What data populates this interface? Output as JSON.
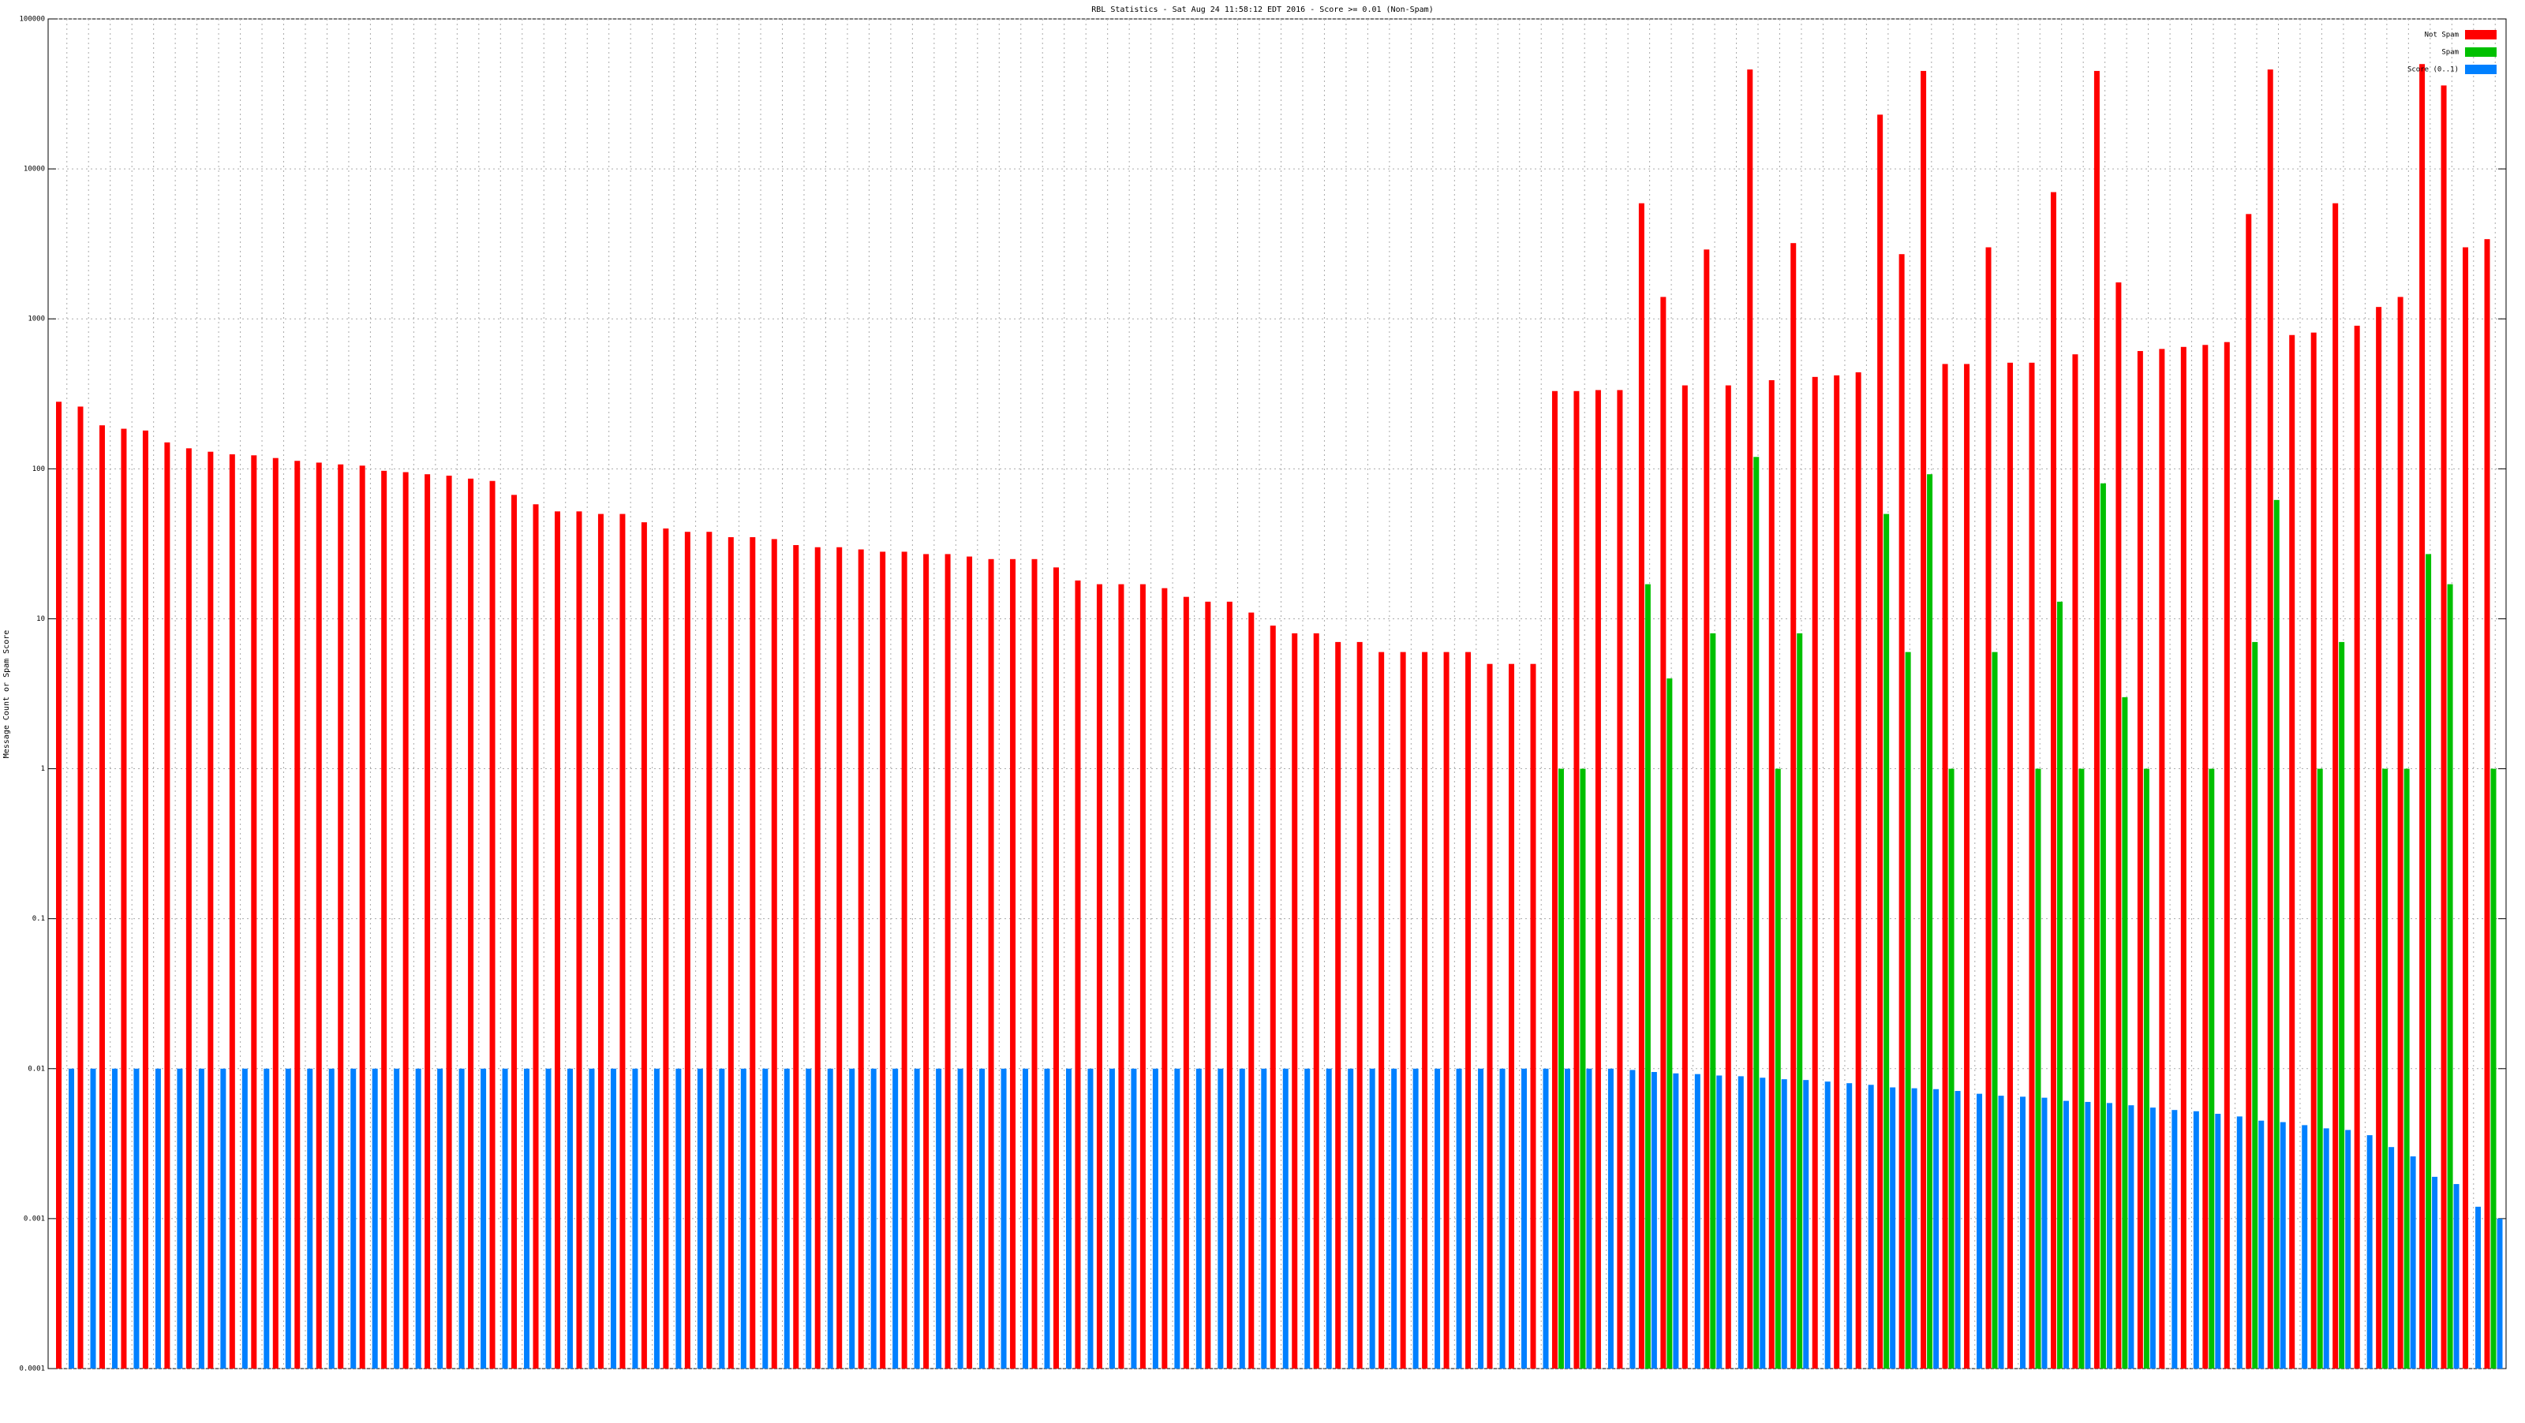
{
  "chart_data": {
    "type": "bar",
    "title": "RBL Statistics - Sat Aug 24 11:58:12 EDT 2016 - Score >= 0.01 (Non-Spam)",
    "y_label": "Message Count or Spam Score",
    "log_scale": true,
    "grid": true,
    "legend": "top-right",
    "categories": [
      null,
      null,
      null,
      null,
      null,
      null,
      null,
      null,
      null,
      null,
      null,
      null,
      null,
      null,
      null,
      null,
      null,
      null,
      null,
      null,
      null,
      null,
      null,
      null,
      null,
      null,
      null,
      null,
      null,
      null,
      null,
      null,
      null,
      null,
      null,
      null,
      null,
      null,
      null,
      null,
      null,
      null,
      null,
      null,
      null,
      null,
      null,
      null,
      null,
      null,
      null,
      null,
      null,
      null,
      null,
      null,
      null,
      null,
      null,
      null,
      null,
      null,
      null,
      null,
      null,
      null,
      null,
      null,
      null,
      null,
      null,
      null,
      null,
      null,
      null,
      null,
      null,
      null,
      null,
      null,
      null,
      null,
      null,
      null,
      null,
      null,
      null,
      null,
      null,
      null,
      null,
      null,
      null,
      null,
      null,
      null,
      null,
      null,
      null,
      null,
      null,
      null,
      null,
      null,
      null,
      null,
      null,
      null,
      null,
      null,
      null,
      null,
      null
    ],
    "series": [
      {
        "name": "Not Spam",
        "color": "#ff0000",
        "values": [
          280,
          260,
          195,
          185,
          180,
          150,
          137,
          130,
          125,
          123,
          118,
          113,
          110,
          107,
          105,
          97,
          95,
          92,
          90,
          86,
          83,
          67,
          58,
          52,
          52,
          50,
          50,
          44,
          40,
          38,
          38,
          35,
          35,
          34,
          31,
          30,
          30,
          29,
          28,
          28,
          27,
          27,
          26,
          25,
          25,
          25,
          22,
          18,
          17,
          17,
          17,
          16,
          14,
          13,
          13,
          11,
          9,
          8,
          8,
          7,
          7,
          6,
          6,
          6,
          6,
          6,
          5,
          5,
          5,
          330,
          330,
          335,
          335,
          5900,
          1400,
          360,
          2900,
          360,
          46000,
          390,
          3200,
          410,
          420,
          440,
          23000,
          2700,
          45000,
          500,
          500,
          3000,
          510,
          510,
          7000,
          580,
          45000,
          1750,
          610,
          630,
          650,
          670,
          700,
          5000,
          46000,
          780,
          810,
          5900,
          900,
          1200,
          1400,
          50000,
          36000,
          3000,
          3400
        ]
      },
      {
        "name": "Spam",
        "color": "#00c000",
        "values": [
          null,
          null,
          null,
          null,
          null,
          null,
          null,
          null,
          null,
          null,
          null,
          null,
          null,
          null,
          null,
          null,
          null,
          null,
          null,
          null,
          null,
          null,
          null,
          null,
          null,
          null,
          null,
          null,
          null,
          null,
          null,
          null,
          null,
          null,
          null,
          null,
          null,
          null,
          null,
          null,
          null,
          null,
          null,
          null,
          null,
          null,
          null,
          null,
          null,
          null,
          null,
          null,
          null,
          null,
          null,
          null,
          null,
          null,
          null,
          null,
          null,
          null,
          null,
          null,
          null,
          null,
          null,
          null,
          null,
          1,
          1,
          null,
          null,
          17,
          4,
          null,
          8,
          null,
          120,
          1,
          8,
          null,
          null,
          null,
          50,
          6,
          92,
          1,
          null,
          6,
          null,
          1,
          13,
          1,
          80,
          3,
          1,
          null,
          null,
          1,
          null,
          7,
          62,
          null,
          1,
          7,
          null,
          1,
          1,
          27,
          17,
          null,
          1
        ]
      },
      {
        "name": "Score (0..1)",
        "color": "#0080ff",
        "values": [
          0.01,
          0.01,
          0.01,
          0.01,
          0.01,
          0.01,
          0.01,
          0.01,
          0.01,
          0.01,
          0.01,
          0.01,
          0.01,
          0.01,
          0.01,
          0.01,
          0.01,
          0.01,
          0.01,
          0.01,
          0.01,
          0.01,
          0.01,
          0.01,
          0.01,
          0.01,
          0.01,
          0.01,
          0.01,
          0.01,
          0.01,
          0.01,
          0.01,
          0.01,
          0.01,
          0.01,
          0.01,
          0.01,
          0.01,
          0.01,
          0.01,
          0.01,
          0.01,
          0.01,
          0.01,
          0.01,
          0.01,
          0.01,
          0.01,
          0.01,
          0.01,
          0.01,
          0.01,
          0.01,
          0.01,
          0.01,
          0.01,
          0.01,
          0.01,
          0.01,
          0.01,
          0.01,
          0.01,
          0.01,
          0.01,
          0.01,
          0.01,
          0.01,
          0.01,
          0.01,
          0.01,
          0.01,
          0.0098,
          0.0095,
          0.0093,
          0.0092,
          0.009,
          0.0089,
          0.0087,
          0.0085,
          0.0084,
          0.0082,
          0.008,
          0.0078,
          0.0075,
          0.0074,
          0.0073,
          0.0071,
          0.0068,
          0.0066,
          0.0065,
          0.0064,
          0.0061,
          0.006,
          0.0059,
          0.0057,
          0.0055,
          0.0053,
          0.0052,
          0.005,
          0.0048,
          0.0045,
          0.0044,
          0.0042,
          0.004,
          0.0039,
          0.0036,
          0.003,
          0.0026,
          0.0019,
          0.0017,
          0.0012,
          0.001
        ]
      }
    ],
    "ylim": [
      0.0001,
      100000
    ],
    "yticks": [
      0.0001,
      0.001,
      0.01,
      0.1,
      1,
      10,
      100,
      1000,
      10000,
      100000
    ]
  }
}
